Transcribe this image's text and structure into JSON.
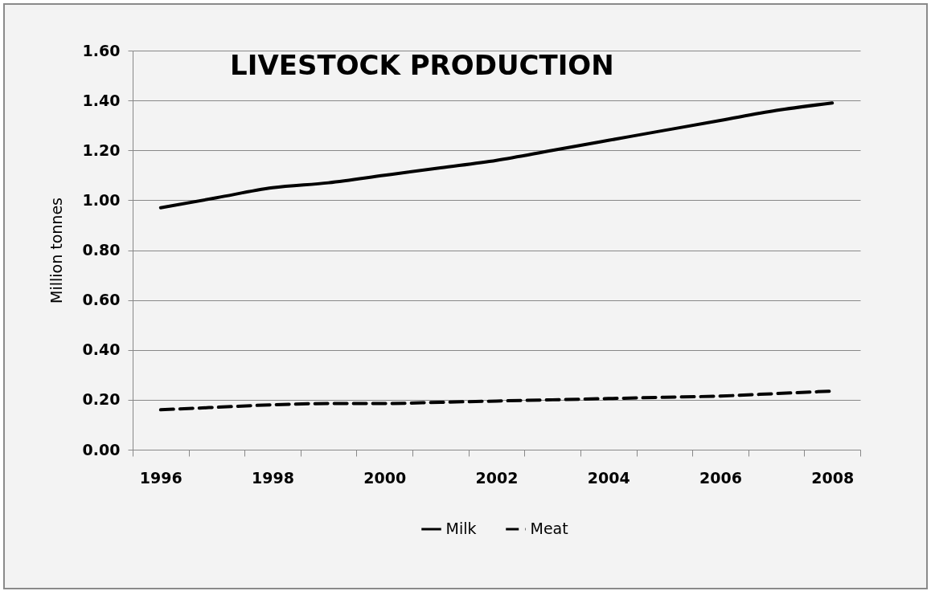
{
  "chart_data": {
    "type": "line",
    "title": "LIVESTOCK  PRODUCTION",
    "ylabel": "Million tonnes",
    "categories": [
      "1996",
      null,
      "1998",
      null,
      "2000",
      null,
      "2002",
      null,
      "2004",
      null,
      "2006",
      null,
      "2008"
    ],
    "series": [
      {
        "name": "Milk",
        "color": "#000000",
        "line_style": "solid",
        "values": [
          0.97,
          1.01,
          1.05,
          1.07,
          1.1,
          1.13,
          1.16,
          1.2,
          1.24,
          1.28,
          1.32,
          1.36,
          1.39
        ]
      },
      {
        "name": "Meat",
        "color": "#000000",
        "line_style": "dashed",
        "values": [
          0.16,
          0.17,
          0.18,
          0.185,
          0.185,
          0.19,
          0.195,
          0.2,
          0.205,
          0.21,
          0.215,
          0.225,
          0.235
        ]
      }
    ],
    "ylim": [
      0,
      1.6
    ],
    "yticks": [
      {
        "value": 0,
        "label": "0.00"
      },
      {
        "value": 0.2,
        "label": "0.20"
      },
      {
        "value": 0.4,
        "label": "0.40"
      },
      {
        "value": 0.6,
        "label": "0.60"
      },
      {
        "value": 0.8,
        "label": "0.80"
      },
      {
        "value": 1.0,
        "label": "1.00"
      },
      {
        "value": 1.2,
        "label": "1.20"
      },
      {
        "value": 1.4,
        "label": "1.40"
      },
      {
        "value": 1.6,
        "label": "1.60"
      }
    ],
    "grid": "y",
    "legend": "bottom"
  }
}
